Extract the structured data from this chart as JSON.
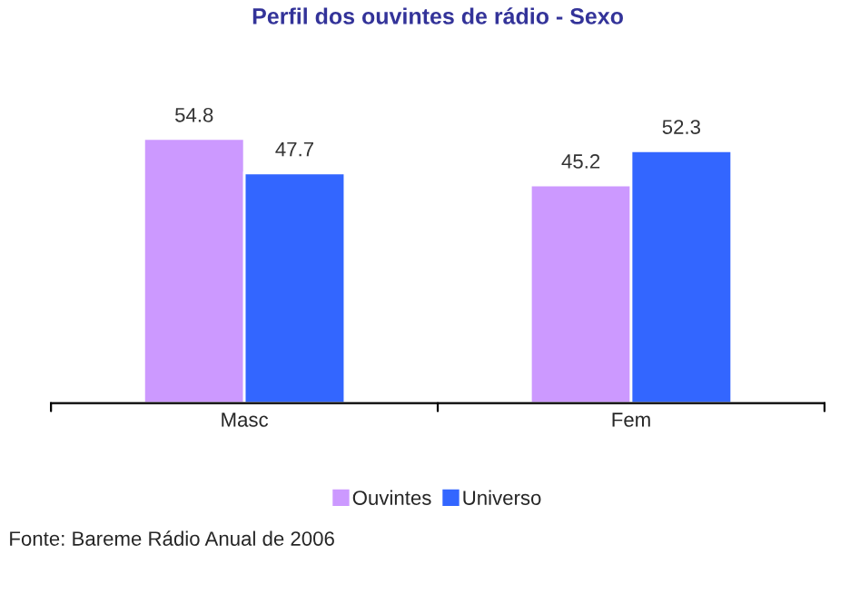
{
  "chart_data": {
    "type": "bar",
    "title": "Perfil dos ouvintes de rádio - Sexo",
    "categories": [
      "Masc",
      "Fem"
    ],
    "series": [
      {
        "name": "Ouvintes",
        "color": "#cc99ff",
        "values": [
          54.8,
          45.2
        ]
      },
      {
        "name": "Universo",
        "color": "#3366ff",
        "values": [
          47.7,
          52.3
        ]
      }
    ],
    "data_labels": true,
    "legend": "bottom",
    "grid": false,
    "tick_labels": "x",
    "annotations": [
      "Fonte: Bareme Rádio Anual de 2006"
    ]
  }
}
